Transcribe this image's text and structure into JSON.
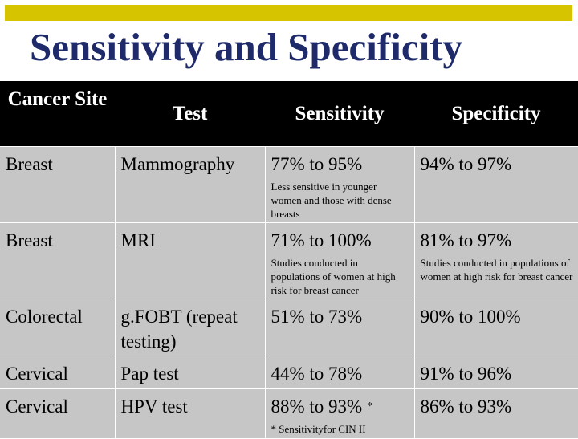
{
  "slide": {
    "title": "Sensitivity and Specificity",
    "accent_color": "#d6c400",
    "title_color": "#1f2a6b"
  },
  "table": {
    "headers": [
      "Cancer Site",
      "Test",
      "Sensitivity",
      "Specificity"
    ],
    "rows": [
      {
        "site": "Breast",
        "test": "Mammography",
        "sensitivity": "77% to 95%",
        "sensitivity_note": "Less sensitive in younger women and those with dense breasts",
        "specificity": "94% to 97%",
        "specificity_note": ""
      },
      {
        "site": "Breast",
        "test": "MRI",
        "sensitivity": "71% to 100%",
        "sensitivity_note": "Studies conducted in populations of women at high risk for breast cancer",
        "specificity": "81% to 97%",
        "specificity_note": "Studies conducted in populations of women at high risk for breast cancer"
      },
      {
        "site": "Colorectal",
        "test": "g.FOBT (repeat testing)",
        "sensitivity": "51% to 73%",
        "sensitivity_note": "",
        "specificity": "90% to 100%",
        "specificity_note": ""
      },
      {
        "site": "Cervical",
        "test": "Pap test",
        "sensitivity": "44% to 78%",
        "sensitivity_note": "",
        "specificity": "91% to 96%",
        "specificity_note": ""
      },
      {
        "site": "Cervical",
        "test": "HPV test",
        "sensitivity": "88% to 93%",
        "sensitivity_marker": "*",
        "sensitivity_note": "* Sensitivityfor CIN II",
        "specificity": "86% to 93%",
        "specificity_note": ""
      }
    ]
  }
}
